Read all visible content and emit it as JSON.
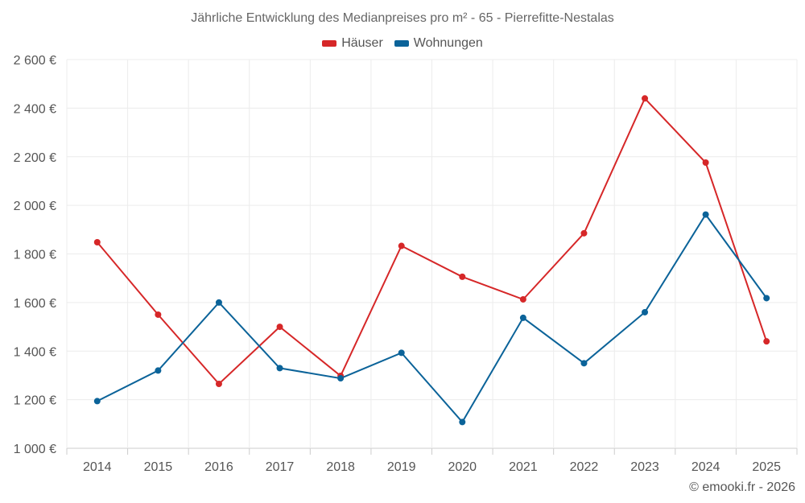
{
  "chart_data": {
    "type": "line",
    "title": "Jährliche Entwicklung des Medianpreises pro m² - 65 - Pierrefitte-Nestalas",
    "xlabel": "",
    "ylabel": "",
    "categories": [
      "2014",
      "2015",
      "2016",
      "2017",
      "2018",
      "2019",
      "2020",
      "2021",
      "2022",
      "2023",
      "2024",
      "2025"
    ],
    "ylim": [
      1000,
      2600
    ],
    "yticks": [
      1000,
      1200,
      1400,
      1600,
      1800,
      2000,
      2200,
      2400,
      2600
    ],
    "ytick_labels": [
      "1 000 €",
      "1 200 €",
      "1 400 €",
      "1 600 €",
      "1 800 €",
      "2 000 €",
      "2 200 €",
      "2 400 €",
      "2 600 €"
    ],
    "grid": true,
    "legend_position": "top-center",
    "series": [
      {
        "name": "Häuser",
        "color": "#d62728",
        "values": [
          1848,
          1550,
          1265,
          1500,
          1298,
          1833,
          1706,
          1613,
          1885,
          2440,
          2176,
          1440
        ]
      },
      {
        "name": "Wohnungen",
        "color": "#0b6399",
        "values": [
          1194,
          1320,
          1600,
          1330,
          1288,
          1393,
          1108,
          1537,
          1350,
          1560,
          1962,
          1618
        ]
      }
    ]
  },
  "credit": "© emooki.fr - 2026"
}
